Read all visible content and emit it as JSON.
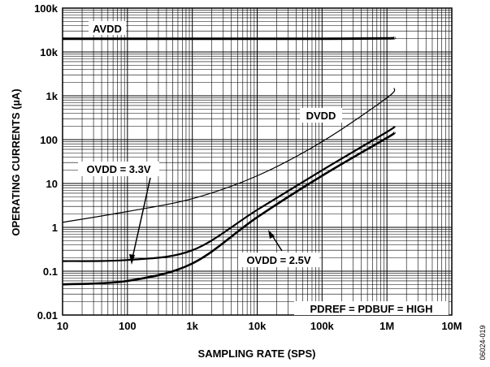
{
  "chart_data": {
    "type": "line",
    "title": "",
    "xlabel": "SAMPLING RATE (SPS)",
    "ylabel": "OPERATING CURRENTS (µA)",
    "xscale": "log",
    "yscale": "log",
    "xlim": [
      10,
      10000000
    ],
    "ylim": [
      0.01,
      100000
    ],
    "grid": true,
    "x_ticks": [
      10,
      100,
      1000,
      10000,
      100000,
      1000000,
      10000000
    ],
    "x_tick_labels": [
      "10",
      "100",
      "1k",
      "10k",
      "100k",
      "1M",
      "10M"
    ],
    "y_ticks": [
      0.01,
      0.1,
      1,
      10,
      100,
      1000,
      10000,
      100000
    ],
    "y_tick_labels": [
      "0.01",
      "0.1",
      "1",
      "10",
      "100",
      "1k",
      "10k",
      "100k"
    ],
    "series": [
      {
        "name": "AVDD",
        "x": [
          10,
          100,
          1000,
          10000,
          100000,
          1000000,
          1300000
        ],
        "y": [
          20000,
          20000,
          20000,
          20000,
          20000,
          20500,
          21000
        ]
      },
      {
        "name": "DVDD",
        "x": [
          10,
          100,
          1000,
          10000,
          100000,
          1000000,
          1300000
        ],
        "y": [
          1.3,
          2.3,
          4.5,
          15,
          90,
          900,
          1500
        ]
      },
      {
        "name": "OVDD = 3.3V",
        "x": [
          10,
          100,
          1000,
          10000,
          100000,
          1000000,
          1300000
        ],
        "y": [
          0.17,
          0.18,
          0.3,
          2.5,
          20,
          150,
          200
        ]
      },
      {
        "name": "OVDD = 2.5V",
        "x": [
          10,
          100,
          1000,
          10000,
          100000,
          1000000,
          1300000
        ],
        "y": [
          0.05,
          0.06,
          0.15,
          1.7,
          15,
          110,
          145
        ]
      }
    ],
    "annotations": [
      "PDREF = PDBUF = HIGH"
    ]
  },
  "figure_id": "06024-019",
  "colors": {
    "line": "#000000",
    "grid": "#000000",
    "background": "#ffffff"
  }
}
